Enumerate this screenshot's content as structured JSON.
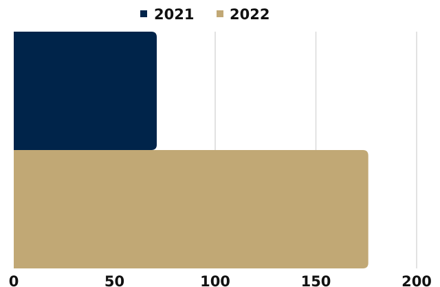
{
  "chart_data": {
    "type": "bar",
    "orientation": "horizontal",
    "series": [
      {
        "name": "2021",
        "value": 71,
        "color": "#00244a"
      },
      {
        "name": "2022",
        "value": 176,
        "color": "#c1a875"
      }
    ],
    "xlim": [
      0,
      200
    ],
    "xticks": [
      0,
      50,
      100,
      150,
      200
    ],
    "grid": true,
    "legend_position": "top"
  }
}
